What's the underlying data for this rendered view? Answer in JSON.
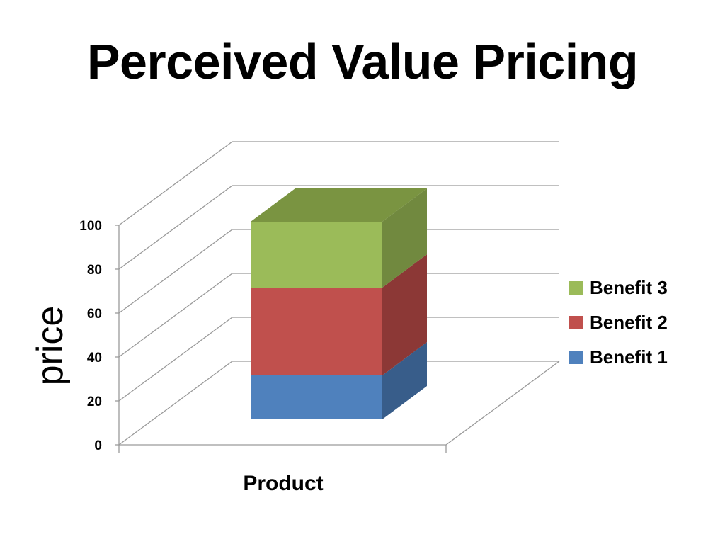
{
  "slide": {
    "title": "Perceived Value Pricing"
  },
  "chart_data": {
    "type": "bar",
    "stacked": true,
    "three_d": true,
    "categories": [
      "Product"
    ],
    "series": [
      {
        "name": "Benefit 1",
        "values": [
          20
        ],
        "color": "#4F81BD",
        "side_color": "#385D8A",
        "top_color": "#5A8ACB"
      },
      {
        "name": "Benefit 2",
        "values": [
          40
        ],
        "color": "#C0504D",
        "side_color": "#8C3836",
        "top_color": "#CB5F5C"
      },
      {
        "name": "Benefit 3",
        "values": [
          30
        ],
        "color": "#9BBB59",
        "side_color": "#71893F",
        "top_color": "#7A9441"
      }
    ],
    "ylabel": "price",
    "xlabel": "",
    "ylim": [
      0,
      100
    ],
    "yticks": [
      0,
      20,
      40,
      60,
      80,
      100
    ],
    "grid": true,
    "legend_position": "right"
  }
}
